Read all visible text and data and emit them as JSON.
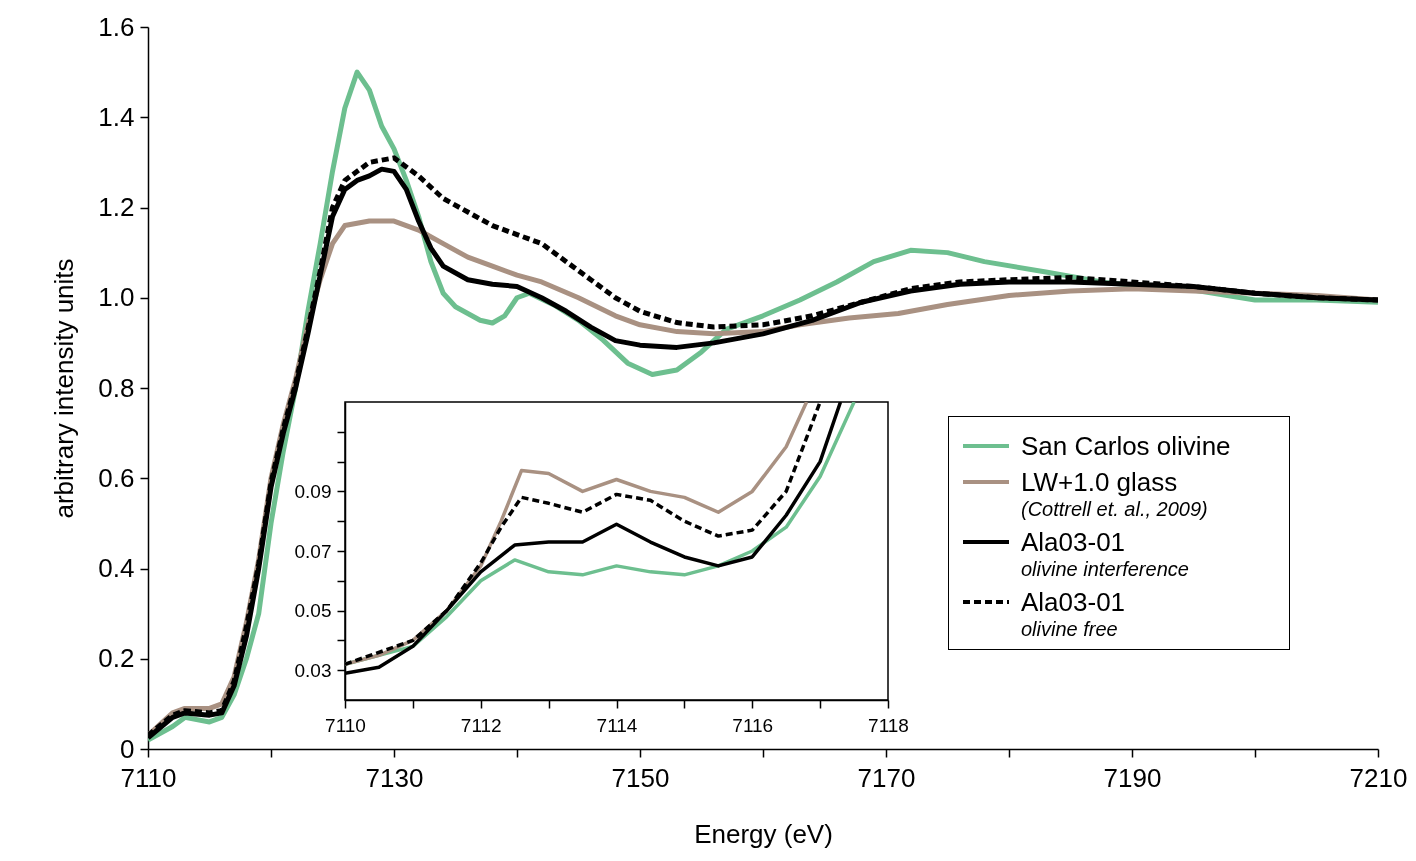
{
  "chart_data": [
    {
      "type": "line",
      "xlabel": "Energy (eV)",
      "ylabel": "arbitrary intensity units",
      "xlim": [
        7110,
        7210
      ],
      "ylim": [
        0,
        1.6
      ],
      "xticks": [
        7110,
        {
          "value": 7120,
          "label": null
        },
        7130,
        {
          "value": 7140,
          "label": null
        },
        7150,
        {
          "value": 7160,
          "label": null
        },
        7170,
        {
          "value": 7180,
          "label": null
        },
        7190,
        {
          "value": 7200,
          "label": null
        },
        7210
      ],
      "yticks": [
        0,
        0.2,
        0.4,
        0.6,
        0.8,
        {
          "value": 1,
          "label": "1.0"
        },
        1.2,
        1.4,
        1.6
      ],
      "legend": "bottom right",
      "annotations": [
        "(Cottrell et. al., 2009)",
        "olivine interference",
        "olivine free"
      ],
      "series": [
        {
          "name": "San Carlos olivine",
          "color": "#6dbf8f",
          "line_style": "solid",
          "x": [
            7110,
            7112,
            7113,
            7115,
            7116,
            7117,
            7118,
            7119,
            7120,
            7121,
            7122,
            7123,
            7124,
            7125,
            7126,
            7127,
            7128,
            7129,
            7130,
            7131,
            7132,
            7133,
            7134,
            7135,
            7137,
            7138,
            7139,
            7140,
            7141,
            7143,
            7145,
            7147,
            7149,
            7151,
            7153,
            7155,
            7157,
            7160,
            7163,
            7166,
            7169,
            7172,
            7175,
            7178,
            7183,
            7188,
            7195,
            7200,
            7205,
            7210
          ],
          "values": [
            0.02,
            0.05,
            0.07,
            0.06,
            0.07,
            0.12,
            0.2,
            0.3,
            0.5,
            0.66,
            0.8,
            0.97,
            1.12,
            1.28,
            1.42,
            1.5,
            1.46,
            1.38,
            1.33,
            1.26,
            1.18,
            1.08,
            1.01,
            0.98,
            0.95,
            0.944,
            0.96,
            1.0,
            1.01,
            0.984,
            0.95,
            0.906,
            0.855,
            0.83,
            0.84,
            0.88,
            0.93,
            0.96,
            0.995,
            1.035,
            1.08,
            1.105,
            1.1,
            1.08,
            1.057,
            1.033,
            1.017,
            0.995,
            0.995,
            0.99
          ]
        },
        {
          "name": "LW+1.0 glass",
          "color": "#a99182",
          "line_style": "solid",
          "x": [
            7110,
            7112,
            7113,
            7115,
            7116,
            7117,
            7118,
            7119,
            7120,
            7121,
            7122,
            7123,
            7124,
            7125,
            7126,
            7128,
            7130,
            7132,
            7134,
            7136,
            7138,
            7140,
            7142,
            7145,
            7148,
            7150,
            7153,
            7156,
            7160,
            7163,
            7167,
            7171,
            7175,
            7180,
            7185,
            7190,
            7195,
            7200,
            7205,
            7210
          ],
          "values": [
            0.03,
            0.08,
            0.09,
            0.09,
            0.1,
            0.16,
            0.28,
            0.42,
            0.6,
            0.72,
            0.82,
            0.94,
            1.04,
            1.12,
            1.16,
            1.17,
            1.17,
            1.15,
            1.12,
            1.09,
            1.07,
            1.05,
            1.035,
            1.0,
            0.96,
            0.94,
            0.925,
            0.92,
            0.925,
            0.94,
            0.955,
            0.965,
            0.985,
            1.005,
            1.015,
            1.02,
            1.015,
            1.01,
            1.005,
            0.995
          ]
        },
        {
          "name": "Ala03-01",
          "color": "#000000",
          "line_style": "solid",
          "x": [
            7110,
            7112,
            7113,
            7115,
            7116,
            7117,
            7118,
            7119,
            7120,
            7121,
            7122,
            7123,
            7124,
            7125,
            7126,
            7127,
            7128,
            7129,
            7130,
            7131,
            7132,
            7133,
            7134,
            7136,
            7138,
            7140,
            7142,
            7144,
            7146,
            7148,
            7150,
            7153,
            7156,
            7160,
            7164,
            7168,
            7172,
            7176,
            7180,
            7185,
            7190,
            7195,
            7200,
            7205,
            7210
          ],
          "values": [
            0.025,
            0.07,
            0.08,
            0.075,
            0.08,
            0.14,
            0.25,
            0.4,
            0.58,
            0.7,
            0.8,
            0.92,
            1.05,
            1.18,
            1.24,
            1.26,
            1.27,
            1.285,
            1.28,
            1.24,
            1.17,
            1.11,
            1.07,
            1.04,
            1.03,
            1.025,
            1.0,
            0.97,
            0.935,
            0.905,
            0.895,
            0.89,
            0.9,
            0.92,
            0.95,
            0.99,
            1.015,
            1.03,
            1.035,
            1.035,
            1.03,
            1.025,
            1.01,
            1.0,
            0.995
          ]
        },
        {
          "name": "Ala03-01",
          "color": "#000000",
          "line_style": "dashed",
          "x": [
            7110,
            7112,
            7113,
            7115,
            7116,
            7117,
            7118,
            7119,
            7120,
            7121,
            7122,
            7123,
            7124,
            7125,
            7126,
            7128,
            7130,
            7132,
            7134,
            7136,
            7138,
            7140,
            7142,
            7144,
            7146,
            7148,
            7150,
            7153,
            7156,
            7160,
            7164,
            7168,
            7172,
            7176,
            7180,
            7185,
            7190,
            7195,
            7200,
            7205,
            7210
          ],
          "values": [
            0.03,
            0.075,
            0.085,
            0.08,
            0.085,
            0.15,
            0.27,
            0.41,
            0.59,
            0.71,
            0.81,
            0.93,
            1.06,
            1.2,
            1.26,
            1.3,
            1.31,
            1.27,
            1.22,
            1.19,
            1.16,
            1.14,
            1.12,
            1.08,
            1.04,
            1.0,
            0.97,
            0.945,
            0.935,
            0.94,
            0.96,
            0.99,
            1.02,
            1.035,
            1.04,
            1.045,
            1.035,
            1.025,
            1.01,
            1.0,
            0.995
          ]
        }
      ]
    },
    {
      "type": "line",
      "xlim": [
        7110,
        7118
      ],
      "ylim": [
        0.02,
        0.12
      ],
      "xticks": [
        7110,
        {
          "value": 7111,
          "label": null
        },
        7112,
        {
          "value": 7113,
          "label": null
        },
        7114,
        {
          "value": 7115,
          "label": null
        },
        7116,
        {
          "value": 7117,
          "label": null
        },
        7118
      ],
      "yticks": [
        0.03,
        {
          "value": 0.04,
          "label": null
        },
        0.05,
        {
          "value": 0.06,
          "label": null
        },
        0.07,
        {
          "value": 0.08,
          "label": null
        },
        0.09,
        {
          "value": 0.1,
          "label": null
        },
        {
          "value": 0.11,
          "label": null
        }
      ],
      "series": [
        {
          "color": "#6dbf8f",
          "line_style": "solid",
          "x": [
            7110,
            7111,
            7111.5,
            7112,
            7112.5,
            7113,
            7113.5,
            7114,
            7114.5,
            7115,
            7115.5,
            7116,
            7116.5,
            7117,
            7117.5
          ],
          "values": [
            0.032,
            0.038,
            0.048,
            0.06,
            0.067,
            0.063,
            0.062,
            0.065,
            0.063,
            0.062,
            0.065,
            0.07,
            0.078,
            0.095,
            0.12
          ]
        },
        {
          "color": "#a99182",
          "line_style": "solid",
          "x": [
            7110,
            7110.5,
            7111,
            7111.5,
            7112,
            7112.3,
            7112.6,
            7113,
            7113.5,
            7114,
            7114.5,
            7115,
            7115.5,
            7116,
            7116.5,
            7116.8
          ],
          "values": [
            0.032,
            0.035,
            0.04,
            0.05,
            0.065,
            0.08,
            0.097,
            0.096,
            0.09,
            0.094,
            0.09,
            0.088,
            0.083,
            0.09,
            0.105,
            0.12
          ]
        },
        {
          "color": "#000000",
          "line_style": "solid",
          "x": [
            7110,
            7110.5,
            7111,
            7111.5,
            7112,
            7112.5,
            7113,
            7113.5,
            7114,
            7114.5,
            7115,
            7115.5,
            7116,
            7116.5,
            7117,
            7117.3
          ],
          "values": [
            0.029,
            0.031,
            0.038,
            0.05,
            0.063,
            0.072,
            0.073,
            0.073,
            0.079,
            0.073,
            0.068,
            0.065,
            0.068,
            0.082,
            0.1,
            0.12
          ]
        },
        {
          "color": "#000000",
          "line_style": "dashed",
          "x": [
            7110,
            7111,
            7111.5,
            7112,
            7112.3,
            7112.6,
            7113,
            7113.5,
            7114,
            7114.5,
            7115,
            7115.5,
            7116,
            7116.5,
            7117
          ],
          "values": [
            0.032,
            0.04,
            0.05,
            0.066,
            0.078,
            0.088,
            0.086,
            0.083,
            0.089,
            0.087,
            0.08,
            0.075,
            0.077,
            0.09,
            0.12
          ]
        }
      ]
    }
  ]
}
